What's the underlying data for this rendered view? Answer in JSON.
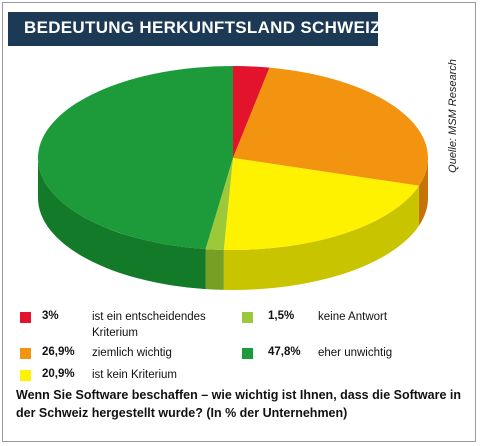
{
  "title": "BEDEUTUNG HERKUNFTSLAND SCHWEIZ",
  "source": "Quelle: MSM Research",
  "question": "Wenn Sie Software beschaffen – wie wichtig ist Ihnen, dass die Software in der Schweiz hergestellt wurde? (In % der Unternehmen)",
  "chart_data": {
    "type": "pie",
    "style": "3d",
    "unit": "%",
    "slices": [
      {
        "label": "ist ein entscheidendes Kriterium",
        "value": 3,
        "display": "3%",
        "color": "#e2132b",
        "side": "#b00c20"
      },
      {
        "label": "ziemlich wichtig",
        "value": 26.9,
        "display": "26,9%",
        "color": "#f29410",
        "side": "#c47408"
      },
      {
        "label": "ist kein Kriterium",
        "value": 20.9,
        "display": "20,9%",
        "color": "#fff200",
        "side": "#c9c400"
      },
      {
        "label": "keine Antwort",
        "value": 1.5,
        "display": "1,5%",
        "color": "#9cc93a",
        "side": "#76a024"
      },
      {
        "label": "eher unwichtig",
        "value": 47.8,
        "display": "47,8%",
        "color": "#1d9a3a",
        "side": "#137a2a"
      }
    ]
  },
  "legend": [
    {
      "pct": "3%",
      "label_line1": "ist ein entscheidendes",
      "label_line2": "Kriterium",
      "color": "#e2132b"
    },
    {
      "pct": "1,5%",
      "label_line1": "keine Antwort",
      "label_line2": "",
      "color": "#9cc93a"
    },
    {
      "pct": "26,9%",
      "label_line1": "ziemlich wichtig",
      "label_line2": "",
      "color": "#f29410"
    },
    {
      "pct": "47,8%",
      "label_line1": "eher unwichtig",
      "label_line2": "",
      "color": "#1d9a3a"
    },
    {
      "pct": "20,9%",
      "label_line1": "ist kein Kriterium",
      "label_line2": "",
      "color": "#fff200"
    }
  ]
}
